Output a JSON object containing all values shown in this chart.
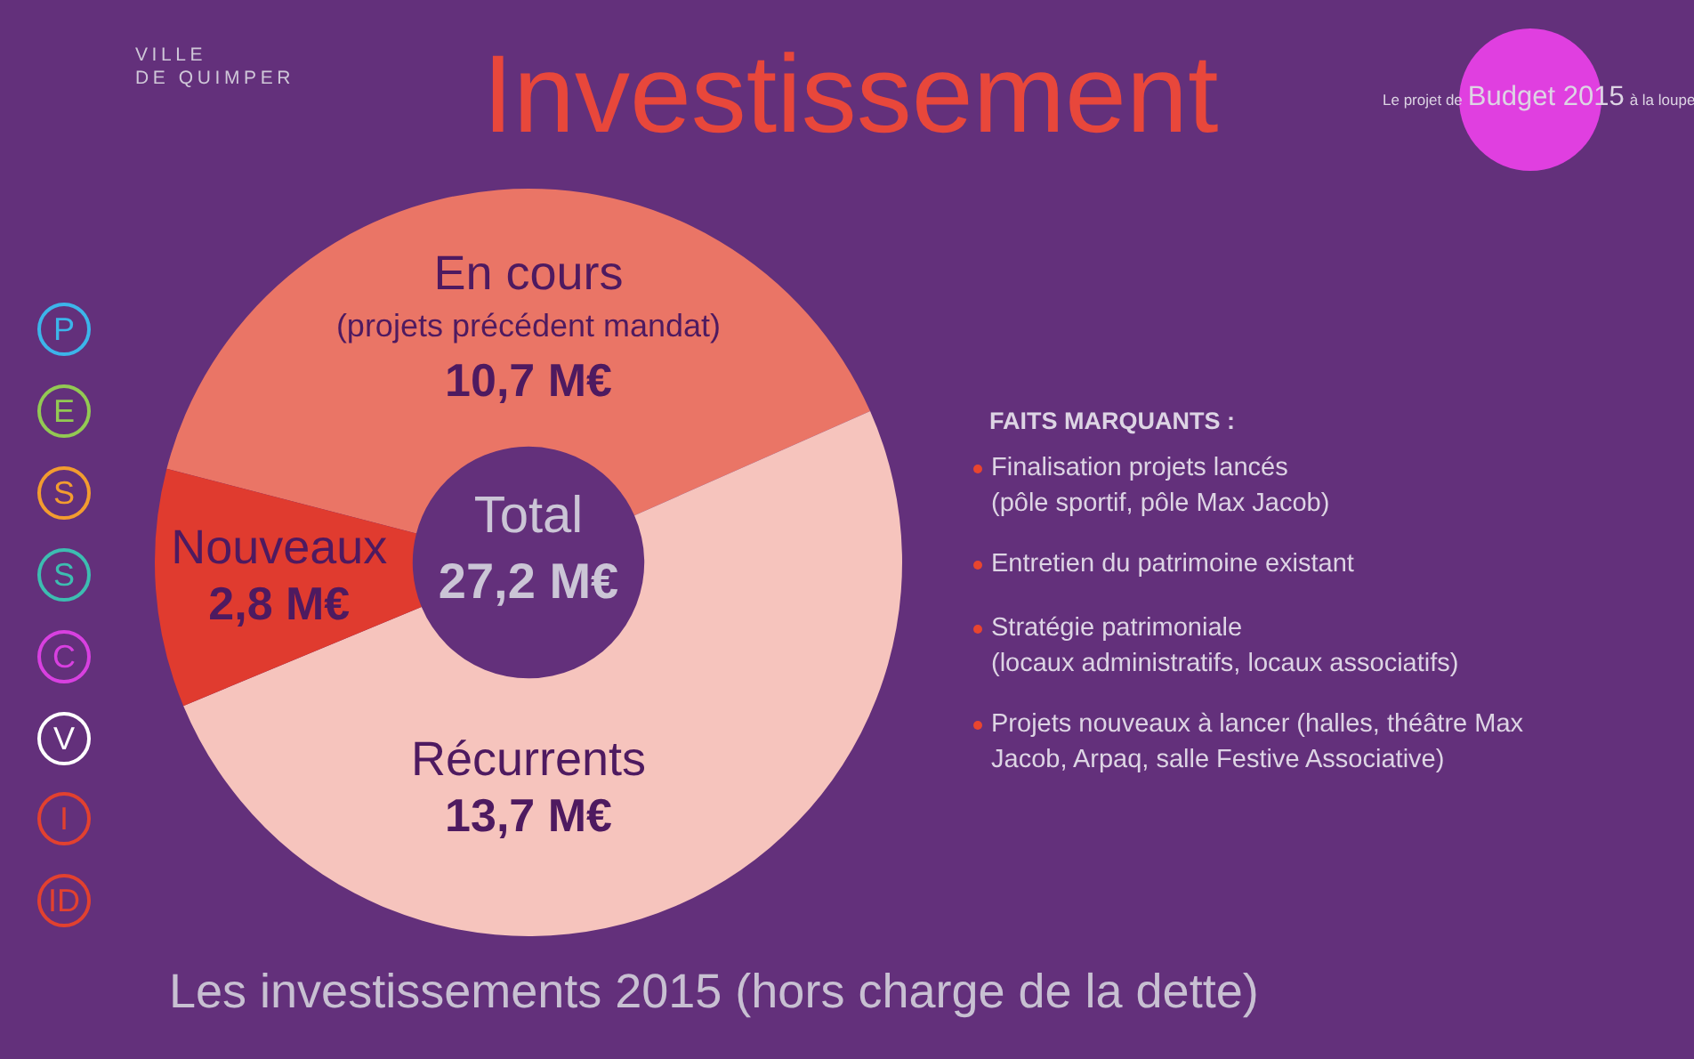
{
  "chart_data": {
    "type": "donut",
    "title": "Investissement",
    "categories": [
      "En cours\n(projets précédent mandat)",
      "Récurrents",
      "Nouveaux"
    ],
    "values": [
      10.7,
      13.7,
      2.8
    ],
    "colors": [
      "#ea7566",
      "#f6c4bd",
      "#e03b2f"
    ],
    "value_labels": [
      "10,7 M€",
      "13,7 M€",
      "2,8 M€"
    ],
    "annotations": [
      "VILLE\nDE QUIMPER",
      "Le projet de",
      "Budget 2015",
      "à la loupe",
      "P",
      "E",
      "S",
      "S",
      "C",
      "V",
      "I",
      "ID",
      "Total",
      "27,2 M€",
      "FAITS MARQUANTS :",
      "Finalisation projets lancés\n(pôle sportif, pôle Max Jacob)",
      "Entretien du patrimoine existant",
      "Stratégie patrimoniale\n(locaux administratifs, locaux associatifs)",
      "Projets nouveaux à lancer (halles, théâtre Max Jacob, Arpaq, salle Festive Associative)",
      "Les investissements 2015 (hors charge de la dette)"
    ]
  }
}
